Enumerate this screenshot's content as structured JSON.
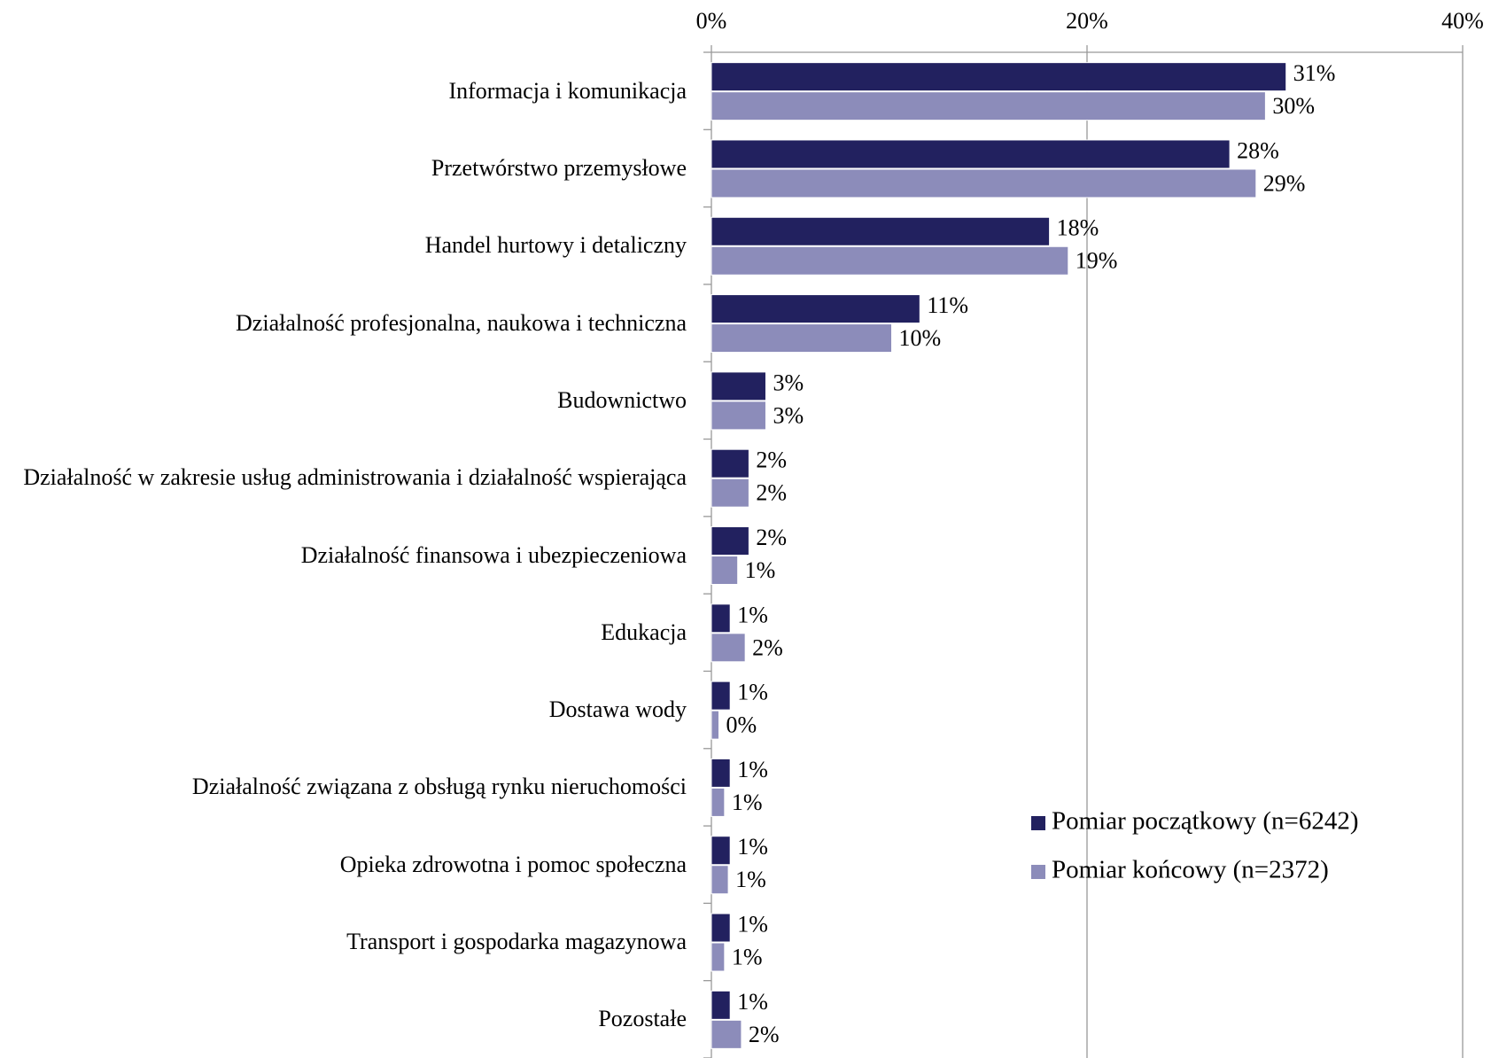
{
  "chart_data": {
    "type": "barh",
    "categories": [
      "Informacja i komunikacja",
      "Przetwórstwo przemysłowe",
      "Handel hurtowy i detaliczny",
      "Działalność profesjonalna, naukowa i techniczna",
      "Budownictwo",
      "Działalność w zakresie usług administrowania i działalność wspierająca",
      "Działalność finansowa i ubezpieczeniowa",
      "Edukacja",
      "Dostawa wody",
      "Działalność związana z obsługą rynku nieruchomości",
      "Opieka zdrowotna i pomoc społeczna",
      "Transport i gospodarka magazynowa",
      "Pozostałe"
    ],
    "series": [
      {
        "name": "Pomiar początkowy (n=6242)",
        "color": "#22215f",
        "values": [
          30.6,
          27.6,
          18.0,
          11.1,
          2.9,
          2.0,
          2.0,
          1.0,
          1.0,
          1.0,
          1.0,
          1.0,
          1.0
        ],
        "value_labels": [
          "31%",
          "28%",
          "18%",
          "11%",
          "3%",
          "2%",
          "2%",
          "1%",
          "1%",
          "1%",
          "1%",
          "1%",
          "1%"
        ]
      },
      {
        "name": "Pomiar końcowy (n=2372)",
        "color": "#8c8cba",
        "values": [
          29.5,
          29.0,
          19.0,
          9.6,
          2.9,
          2.0,
          1.4,
          1.8,
          0.4,
          0.7,
          0.9,
          0.7,
          1.6
        ],
        "value_labels": [
          "30%",
          "29%",
          "19%",
          "10%",
          "3%",
          "2%",
          "1%",
          "2%",
          "0%",
          "1%",
          "1%",
          "1%",
          "2%"
        ]
      }
    ],
    "xlim": [
      0,
      40
    ],
    "xticks": [
      {
        "value": 0,
        "label": "0%"
      },
      {
        "value": 20,
        "label": "20%"
      },
      {
        "value": 40,
        "label": "40%"
      }
    ],
    "grid": true,
    "legend": "lower right"
  }
}
